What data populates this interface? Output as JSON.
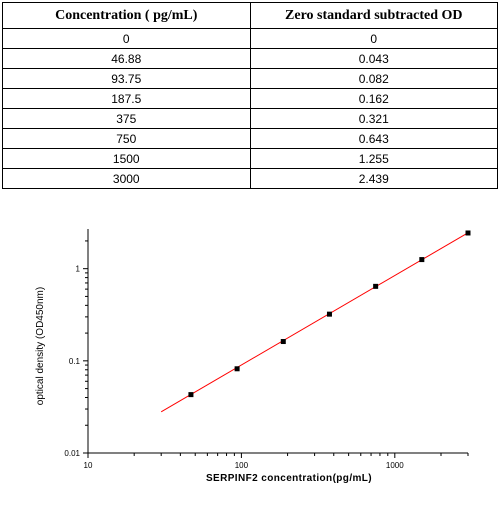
{
  "table": {
    "headers": [
      "Concentration ( pg/mL)",
      "Zero standard subtracted OD"
    ],
    "rows": [
      [
        "0",
        "0"
      ],
      [
        "46.88",
        "0.043"
      ],
      [
        "93.75",
        "0.082"
      ],
      [
        "187.5",
        "0.162"
      ],
      [
        "375",
        "0.321"
      ],
      [
        "750",
        "0.643"
      ],
      [
        "1500",
        "1.255"
      ],
      [
        "3000",
        "2.439"
      ]
    ]
  },
  "chart_data": {
    "type": "scatter",
    "xlabel": "SERPINF2  concentration(pg/mL)",
    "ylabel": "optical density (OD450nm)",
    "x_scale": "log",
    "y_scale": "log",
    "xlim": [
      10,
      3000
    ],
    "ylim": [
      0.01,
      2.5
    ],
    "x_ticks": [
      10,
      100,
      1000
    ],
    "x_tick_labels": [
      "10",
      "100",
      "1000"
    ],
    "y_ticks": [
      0.01,
      0.1,
      1
    ],
    "y_tick_labels": [
      "0.01",
      "0.1",
      "1"
    ],
    "grid": false,
    "points": {
      "x": [
        46.88,
        93.75,
        187.5,
        375,
        750,
        1500,
        3000
      ],
      "y": [
        0.043,
        0.082,
        0.162,
        0.321,
        0.643,
        1.255,
        2.439
      ]
    },
    "fit_line": {
      "x": [
        30,
        3000
      ],
      "y": [
        0.028,
        2.45
      ]
    },
    "colors": {
      "points": "#000000",
      "fit_line": "#ff0000",
      "axes": "#000000"
    }
  }
}
